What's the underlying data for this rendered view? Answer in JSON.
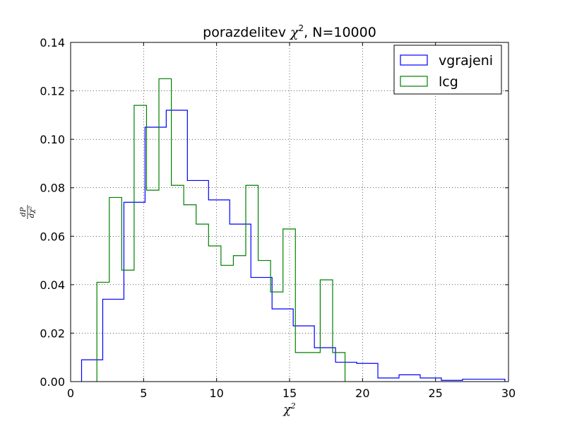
{
  "chart_data": {
    "type": "histogram-step",
    "title_prefix": "porazdelitev ",
    "title_symbol": "χ",
    "title_sup": "2",
    "title_suffix": ", N=10000",
    "xlabel_symbol": "χ",
    "xlabel_sup": "2",
    "ylabel_num": "dP",
    "ylabel_den": "dχ²",
    "xlim": [
      0,
      30
    ],
    "ylim": [
      0,
      0.14
    ],
    "xticks": [
      0,
      5,
      10,
      15,
      20,
      25,
      30
    ],
    "yticks": [
      0.0,
      0.02,
      0.04,
      0.06,
      0.08,
      0.1,
      0.12,
      0.14
    ],
    "ytick_labels": [
      "0.00",
      "0.02",
      "0.04",
      "0.06",
      "0.08",
      "0.10",
      "0.12",
      "0.14"
    ],
    "grid": true,
    "legend_position": "top-right",
    "series": [
      {
        "name": "vgrajeni",
        "color": "#0000ff",
        "edges": [
          0.75,
          2.2,
          3.65,
          5.1,
          6.55,
          8.0,
          9.45,
          10.9,
          12.35,
          13.8,
          15.25,
          16.7,
          18.15,
          19.6,
          21.05,
          22.5,
          23.95,
          25.4,
          26.85,
          28.3,
          29.75
        ],
        "values": [
          0.009,
          0.034,
          0.074,
          0.105,
          0.112,
          0.083,
          0.075,
          0.065,
          0.043,
          0.03,
          0.023,
          0.014,
          0.008,
          0.0075,
          0.0015,
          0.0028,
          0.0015,
          0.0005,
          0.001,
          0.001
        ]
      },
      {
        "name": "lcg",
        "color": "#008000",
        "edges": [
          1.8,
          2.65,
          3.5,
          4.35,
          5.2,
          6.05,
          6.9,
          7.75,
          8.6,
          9.45,
          10.3,
          11.15,
          12.0,
          12.85,
          13.7,
          14.55,
          15.4,
          16.25,
          17.1,
          17.95,
          18.8
        ],
        "values": [
          0.041,
          0.076,
          0.046,
          0.114,
          0.079,
          0.125,
          0.081,
          0.073,
          0.065,
          0.056,
          0.048,
          0.052,
          0.081,
          0.05,
          0.037,
          0.063,
          0.012,
          0.012,
          0.042,
          0.012
        ]
      }
    ]
  }
}
